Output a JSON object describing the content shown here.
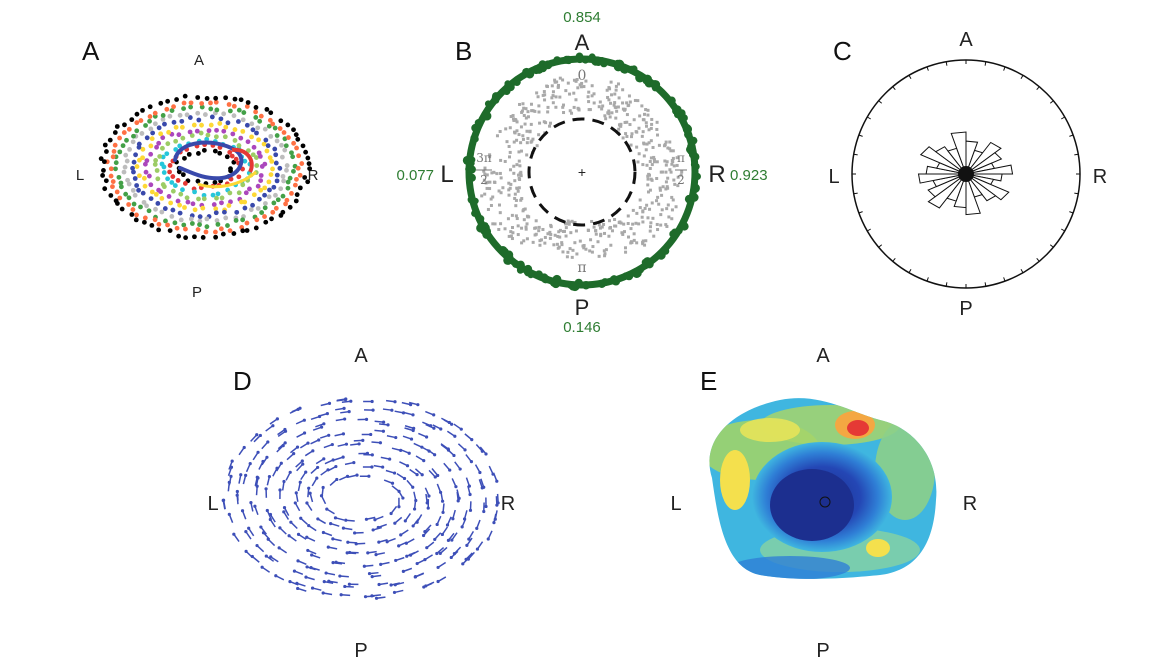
{
  "figure": {
    "panel_a": {
      "letter": "A",
      "dir_top": "A",
      "dir_left": "L",
      "dir_right": "R",
      "dir_bottom": "P"
    },
    "panel_b": {
      "letter": "B",
      "dir_top": "A",
      "dir_left": "L",
      "dir_right": "R",
      "dir_bottom": "P",
      "value_top": "0.854",
      "value_left": "0.077",
      "value_right": "0.923",
      "value_bottom": "0.146",
      "phase_top": "0",
      "phase_bottom": "π",
      "phase_right_num": "π",
      "phase_right_den": "2",
      "phase_left_num": "3π",
      "phase_left_den": "2",
      "center_mark": "+"
    },
    "panel_c": {
      "letter": "C",
      "dir_top": "A",
      "dir_left": "L",
      "dir_right": "R",
      "dir_bottom": "P"
    },
    "panel_d": {
      "letter": "D",
      "dir_top": "A",
      "dir_left": "L",
      "dir_right": "R",
      "dir_bottom": "P"
    },
    "panel_e": {
      "letter": "E",
      "dir_top": "A",
      "dir_left": "L",
      "dir_right": "R",
      "dir_bottom": "P"
    }
  },
  "colors": {
    "ring_green": "#1e6b2a",
    "label_green": "#2e7d32",
    "gray_points": "#a9a9a9",
    "arrow_blue": "#3d4fb8",
    "trajectory_palette": [
      "#000000",
      "#e53935",
      "#26c6da",
      "#9ccc65",
      "#ab47bc",
      "#fdd835",
      "#3949ab",
      "#bdbdbd",
      "#43a047",
      "#ff7043"
    ],
    "heatmap_low": "#1e3a9a",
    "heatmap_mid": "#3fb6e0",
    "heatmap_high": "#f4e04d",
    "heatmap_peak": "#e53935"
  }
}
